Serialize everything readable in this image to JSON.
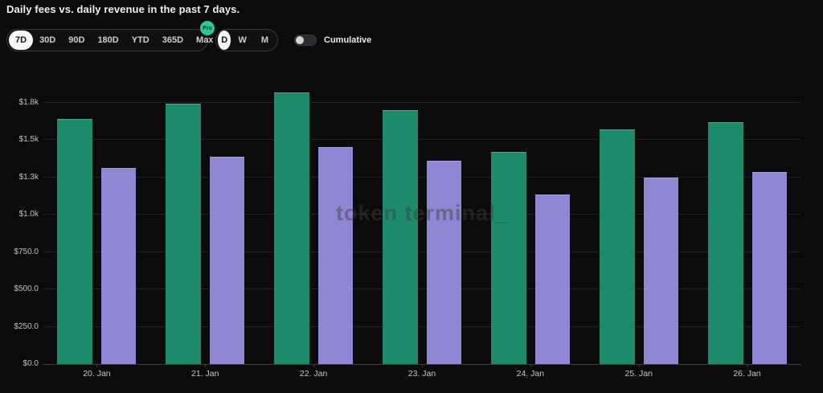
{
  "header": {
    "title": "Daily fees vs. daily revenue in the past 7 days."
  },
  "controls": {
    "time_ranges": [
      "7D",
      "30D",
      "90D",
      "180D",
      "YTD",
      "365D",
      "Max"
    ],
    "selected_time_range": "7D",
    "pro_badge": "Pro",
    "granularities": [
      "D",
      "W",
      "M"
    ],
    "selected_granularity": "D",
    "cumulative_label": "Cumulative",
    "cumulative_enabled": false
  },
  "watermark": "token terminal_",
  "colors": {
    "background": "#0b0b0c",
    "fees_bar": "#1d8a6c",
    "revenue_bar": "#9186d3",
    "pro_badge": "#2ec79b",
    "gridline": "#232323",
    "selected_pill": "#f7f7f7"
  },
  "chart_data": {
    "type": "bar",
    "title": "Daily fees vs. daily revenue in the past 7 days.",
    "categories": [
      "20. Jan",
      "21. Jan",
      "22. Jan",
      "23. Jan",
      "24. Jan",
      "25. Jan",
      "26. Jan"
    ],
    "series": [
      {
        "name": "Daily fees",
        "color": "#1d8a6c",
        "values": [
          1640,
          1745,
          1820,
          1700,
          1420,
          1570,
          1620
        ]
      },
      {
        "name": "Daily revenue",
        "color": "#9186d3",
        "values": [
          1315,
          1390,
          1455,
          1360,
          1135,
          1250,
          1285
        ]
      }
    ],
    "xlabel": "",
    "ylabel": "",
    "ylim": [
      0,
      1900
    ],
    "grid": true,
    "legend_position": "none",
    "y_ticks": [
      {
        "value": 0,
        "label": "$0.0"
      },
      {
        "value": 250,
        "label": "$250.0"
      },
      {
        "value": 500,
        "label": "$500.0"
      },
      {
        "value": 750,
        "label": "$750.0"
      },
      {
        "value": 1000,
        "label": "$1.0k"
      },
      {
        "value": 1250,
        "label": "$1.3k"
      },
      {
        "value": 1500,
        "label": "$1.5k"
      },
      {
        "value": 1750,
        "label": "$1.8k"
      }
    ]
  }
}
